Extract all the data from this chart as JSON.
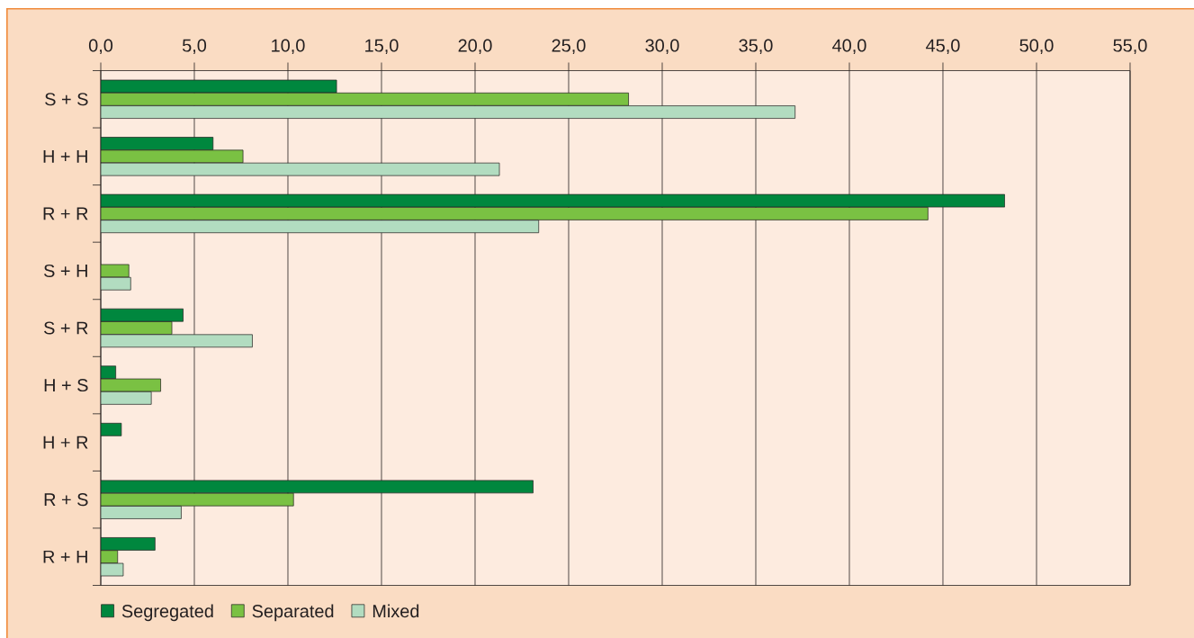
{
  "chart_data": {
    "type": "bar",
    "orientation": "horizontal",
    "categories": [
      "S + S",
      "H + H",
      "R + R",
      "S + H",
      "S + R",
      "H + S",
      "H + R",
      "R + S",
      "R + H"
    ],
    "series": [
      {
        "name": "Segregated",
        "color": "#00873e",
        "values": [
          12.6,
          6.0,
          48.3,
          null,
          4.4,
          0.8,
          1.1,
          23.1,
          2.9
        ]
      },
      {
        "name": "Separated",
        "color": "#7ac143",
        "values": [
          28.2,
          7.6,
          44.2,
          1.5,
          3.8,
          3.2,
          null,
          10.3,
          0.9
        ]
      },
      {
        "name": "Mixed",
        "color": "#b2dcc0",
        "values": [
          37.1,
          21.3,
          23.4,
          1.6,
          8.1,
          2.7,
          null,
          4.3,
          1.2
        ]
      }
    ],
    "xlim": [
      0,
      55
    ],
    "xticks": [
      {
        "value": 0,
        "label": "0,0"
      },
      {
        "value": 5,
        "label": "5,0"
      },
      {
        "value": 10,
        "label": "10,0"
      },
      {
        "value": 15,
        "label": "15,0"
      },
      {
        "value": 20,
        "label": "20,0"
      },
      {
        "value": 25,
        "label": "25,0"
      },
      {
        "value": 30,
        "label": "30,0"
      },
      {
        "value": 35,
        "label": "35,0"
      },
      {
        "value": 40,
        "label": "40,0"
      },
      {
        "value": 45,
        "label": "45,0"
      },
      {
        "value": 50,
        "label": "50,0"
      },
      {
        "value": 55,
        "label": "55,0"
      }
    ],
    "grid": "x",
    "legend": "bottom"
  }
}
